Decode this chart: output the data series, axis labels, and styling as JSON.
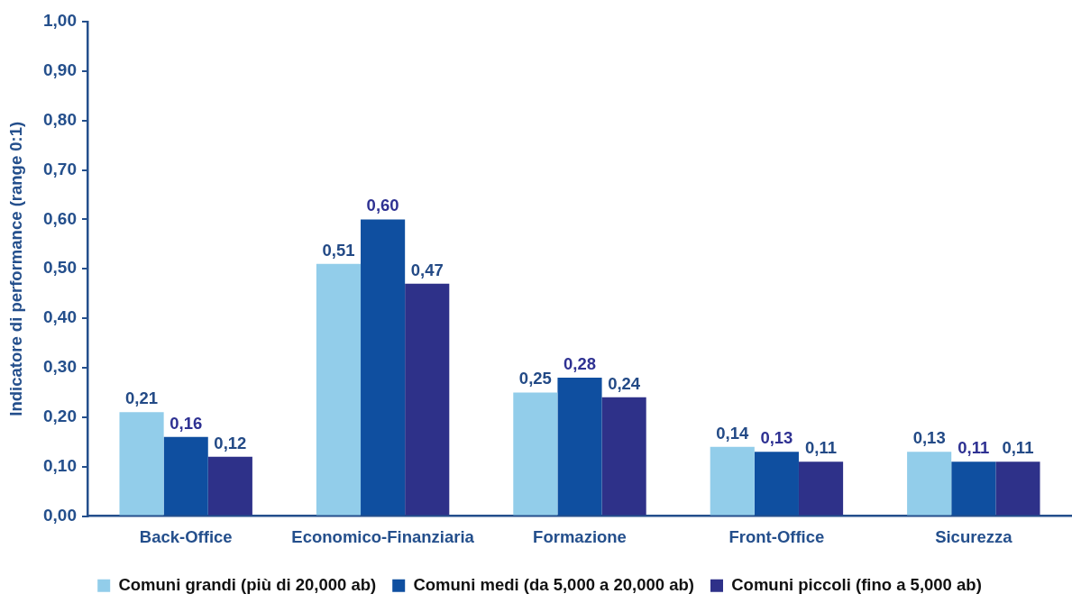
{
  "chart_data": {
    "type": "bar",
    "ylabel": "Indicatore di performance (range 0:1)",
    "categories": [
      "Back-Office",
      "Economico-Finanziaria",
      "Formazione",
      "Front-Office",
      "Sicurezza"
    ],
    "series": [
      {
        "name": "Comuni grandi (più di 20,000 ab)",
        "color": "#92cdea",
        "values": [
          0.21,
          0.51,
          0.25,
          0.14,
          0.13
        ],
        "value_labels": [
          "0,21",
          "0,51",
          "0,25",
          "0,14",
          "0,13"
        ]
      },
      {
        "name": "Comuni medi (da 5,000 a 20,000 ab)",
        "color": "#0f4fa0",
        "values": [
          0.16,
          0.6,
          0.28,
          0.13,
          0.11
        ],
        "value_labels": [
          "0,16",
          "0,60",
          "0,28",
          "0,13",
          "0,11"
        ]
      },
      {
        "name": "Comuni piccoli (fino a 5,000 ab)",
        "color": "#2e3189",
        "values": [
          0.12,
          0.47,
          0.24,
          0.11,
          0.11
        ],
        "value_labels": [
          "0,12",
          "0,47",
          "0,24",
          "0,11",
          "0,11"
        ]
      }
    ],
    "ylim": [
      0,
      1
    ],
    "yticks": [
      {
        "value": 0,
        "label": "0,00"
      },
      {
        "value": 0.1,
        "label": "0,10"
      },
      {
        "value": 0.2,
        "label": "0,20"
      },
      {
        "value": 0.3,
        "label": "0,30"
      },
      {
        "value": 0.4,
        "label": "0,40"
      },
      {
        "value": 0.5,
        "label": "0,50"
      },
      {
        "value": 0.6,
        "label": "0,60"
      },
      {
        "value": 0.7,
        "label": "0,70"
      },
      {
        "value": 0.8,
        "label": "0,80"
      },
      {
        "value": 0.9,
        "label": "0,90"
      },
      {
        "value": 1,
        "label": "1,00"
      }
    ],
    "grid": false,
    "legend": "bottom"
  }
}
